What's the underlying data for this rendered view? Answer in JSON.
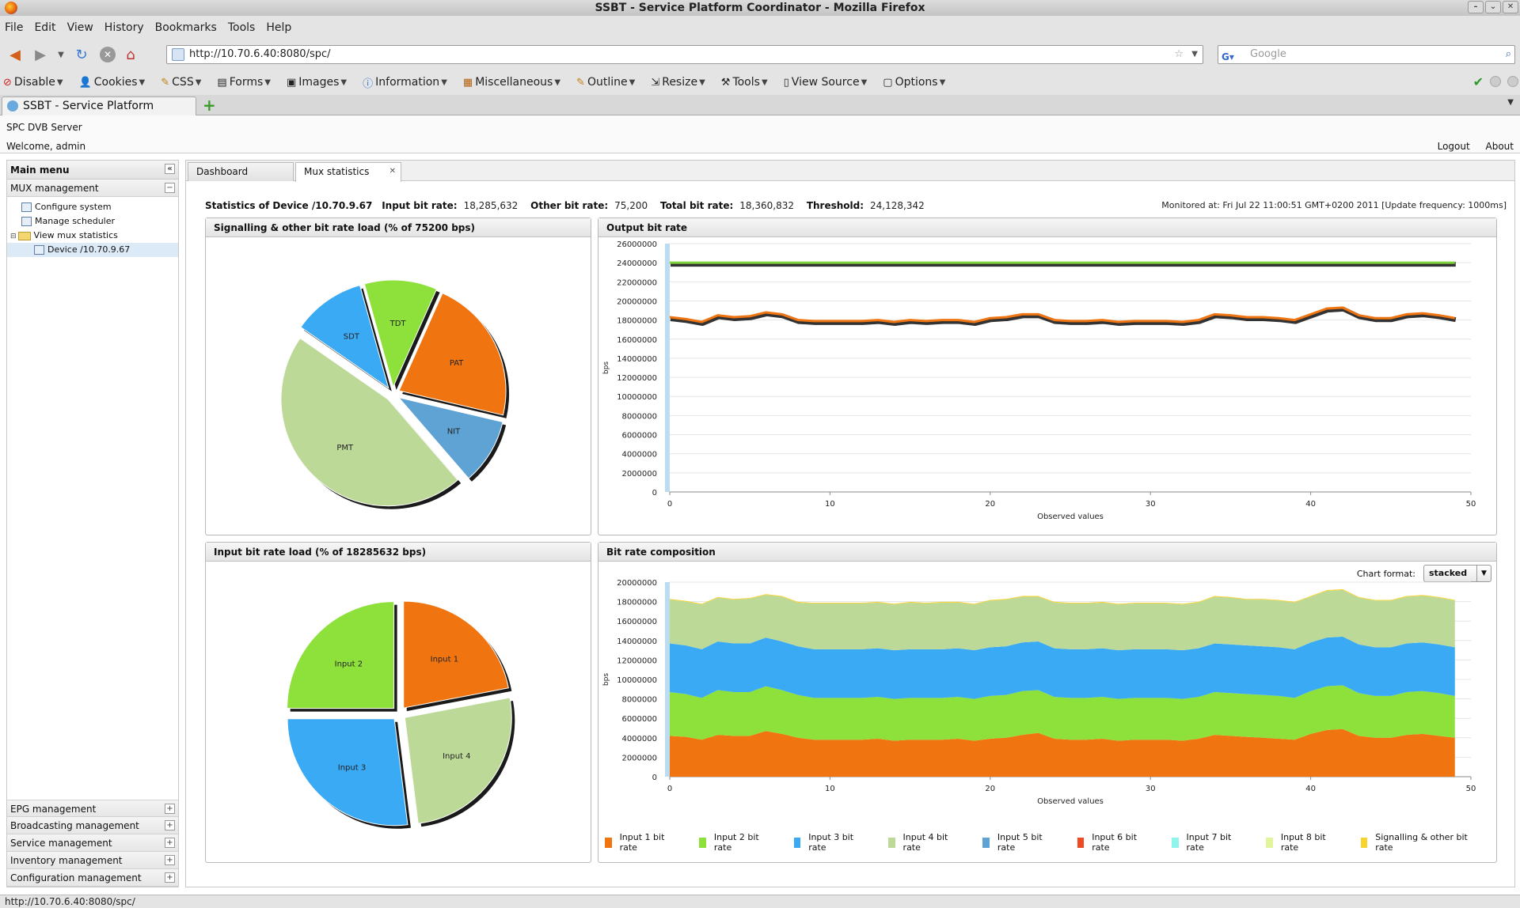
{
  "window": {
    "title": "SSBT - Service Platform Coordinator - Mozilla Firefox"
  },
  "menubar": [
    "File",
    "Edit",
    "View",
    "History",
    "Bookmarks",
    "Tools",
    "Help"
  ],
  "nav": {
    "url": "http://10.70.6.40:8080/spc/",
    "search_placeholder": "Google"
  },
  "devbar": [
    {
      "label": "Disable",
      "icon": "stop-icon"
    },
    {
      "label": "Cookies",
      "icon": "person-icon"
    },
    {
      "label": "CSS",
      "icon": "pencil-icon"
    },
    {
      "label": "Forms",
      "icon": "form-icon"
    },
    {
      "label": "Images",
      "icon": "image-icon"
    },
    {
      "label": "Information",
      "icon": "info-icon"
    },
    {
      "label": "Miscellaneous",
      "icon": "misc-icon"
    },
    {
      "label": "Outline",
      "icon": "pencil-icon"
    },
    {
      "label": "Resize",
      "icon": "resize-icon"
    },
    {
      "label": "Tools",
      "icon": "wrench-icon"
    },
    {
      "label": "View Source",
      "icon": "page-icon"
    },
    {
      "label": "Options",
      "icon": "options-icon"
    }
  ],
  "browser_tab": {
    "label": "SSBT - Service Platform Coordinator"
  },
  "app": {
    "name": "SPC DVB Server",
    "welcome": "Welcome, admin",
    "logout": "Logout",
    "about": "About"
  },
  "sidebar": {
    "title": "Main menu",
    "section": "MUX management",
    "items": [
      {
        "label": "Configure system"
      },
      {
        "label": "Manage scheduler"
      },
      {
        "label": "View mux statistics"
      },
      {
        "label": "Device /10.70.9.67"
      }
    ],
    "sections": [
      "EPG management",
      "Broadcasting management",
      "Service management",
      "Inventory management",
      "Configuration management"
    ]
  },
  "tabs": [
    {
      "label": "Dashboard"
    },
    {
      "label": "Mux statistics"
    }
  ],
  "stats": {
    "device": "Statistics of Device /10.70.9.67",
    "input_label": "Input bit rate:",
    "input": "18,285,632",
    "other_label": "Other bit rate:",
    "other": "75,200",
    "total_label": "Total bit rate:",
    "total": "18,360,832",
    "threshold_label": "Threshold:",
    "threshold": "24,128,342",
    "monitored": "Monitored at: Fri Jul 22 11:00:51 GMT+0200 2011 [Update frequency: 1000ms]"
  },
  "panels": {
    "signalling": "Signalling & other bit rate load (% of 75200 bps)",
    "output": "Output bit rate",
    "input": "Input bit rate load (% of 18285632 bps)",
    "composition": "Bit rate composition",
    "chart_format_label": "Chart format:",
    "chart_format": "stacked"
  },
  "colors": {
    "orange": "#f07410",
    "green": "#8ee03a",
    "blue": "#3aaaf5",
    "sage": "#bcd998",
    "steel": "#5ea3d4",
    "red": "#f04a22",
    "cyan": "#8ef4ec",
    "lime": "#e2f59a",
    "yellow": "#f8d32e",
    "dark": "#333333"
  },
  "chart_data": [
    {
      "type": "pie",
      "title": "Signalling & other bit rate load (% of 75200 bps)",
      "slices": [
        {
          "label": "PAT",
          "value": 22
        },
        {
          "label": "NIT",
          "value": 10
        },
        {
          "label": "PMT",
          "value": 46
        },
        {
          "label": "SDT",
          "value": 11
        },
        {
          "label": "TDT",
          "value": 11
        }
      ]
    },
    {
      "type": "line",
      "title": "Output bit rate",
      "xlabel": "Observed values",
      "ylabel": "bps",
      "xlim": [
        0,
        50
      ],
      "ylim": [
        0,
        26000000
      ],
      "xticks": [
        0,
        10,
        20,
        30,
        40,
        50
      ],
      "yticks": [
        0,
        2000000,
        4000000,
        6000000,
        8000000,
        10000000,
        12000000,
        14000000,
        16000000,
        18000000,
        20000000,
        22000000,
        24000000,
        26000000
      ],
      "x": [
        0,
        1,
        2,
        3,
        4,
        5,
        6,
        7,
        8,
        9,
        10,
        11,
        12,
        13,
        14,
        15,
        16,
        17,
        18,
        19,
        20,
        21,
        22,
        23,
        24,
        25,
        26,
        27,
        28,
        29,
        30,
        31,
        32,
        33,
        34,
        35,
        36,
        37,
        38,
        39,
        40,
        41,
        42,
        43,
        44,
        45,
        46,
        47,
        48,
        49
      ],
      "series": [
        {
          "values": [
            24000000,
            24000000,
            24000000,
            24000000,
            24000000,
            24000000,
            24000000,
            24000000,
            24000000,
            24000000,
            24000000,
            24000000,
            24000000,
            24000000,
            24000000,
            24000000,
            24000000,
            24000000,
            24000000,
            24000000,
            24000000,
            24000000,
            24000000,
            24000000,
            24000000,
            24000000,
            24000000,
            24000000,
            24000000,
            24000000,
            24000000,
            24000000,
            24000000,
            24000000,
            24000000,
            24000000,
            24000000,
            24000000,
            24000000,
            24000000,
            24000000,
            24000000,
            24000000,
            24000000,
            24000000,
            24000000,
            24000000,
            24000000,
            24000000,
            24000000
          ],
          "color": "#7fd23a"
        },
        {
          "values": [
            18300000,
            18100000,
            17800000,
            18500000,
            18300000,
            18400000,
            18800000,
            18600000,
            18000000,
            17900000,
            17900000,
            17900000,
            17900000,
            18000000,
            17800000,
            18000000,
            17900000,
            18000000,
            18000000,
            17800000,
            18200000,
            18300000,
            18600000,
            18600000,
            18000000,
            17900000,
            17900000,
            18000000,
            17800000,
            17900000,
            17900000,
            17900000,
            17800000,
            18000000,
            18600000,
            18500000,
            18300000,
            18300000,
            18200000,
            18000000,
            18600000,
            19200000,
            19300000,
            18500000,
            18200000,
            18200000,
            18600000,
            18700000,
            18500000,
            18200000
          ],
          "color": "#f07410"
        }
      ]
    },
    {
      "type": "pie",
      "title": "Input bit rate load (% of 18285632 bps)",
      "slices": [
        {
          "label": "Input 1",
          "value": 22
        },
        {
          "label": "Input 4",
          "value": 26
        },
        {
          "label": "Input 3",
          "value": 27
        },
        {
          "label": "Input 2",
          "value": 25
        }
      ]
    },
    {
      "type": "area",
      "title": "Bit rate composition",
      "stacked": true,
      "xlabel": "Observed values",
      "ylabel": "bps",
      "xlim": [
        0,
        50
      ],
      "ylim": [
        0,
        20000000
      ],
      "xticks": [
        0,
        10,
        20,
        30,
        40,
        50
      ],
      "yticks": [
        0,
        2000000,
        4000000,
        6000000,
        8000000,
        10000000,
        12000000,
        14000000,
        16000000,
        18000000,
        20000000
      ],
      "legend_position": "bottom",
      "series": [
        {
          "name": "Input 1 bit rate",
          "color": "#f07410",
          "values": [
            4200000,
            4100000,
            3800000,
            4300000,
            4200000,
            4200000,
            4700000,
            4400000,
            4000000,
            3800000,
            3800000,
            3800000,
            3800000,
            3900000,
            3700000,
            3800000,
            3800000,
            3800000,
            3900000,
            3700000,
            3900000,
            4000000,
            4300000,
            4500000,
            3900000,
            3800000,
            3800000,
            3900000,
            3700000,
            3800000,
            3800000,
            3800000,
            3700000,
            3900000,
            4300000,
            4200000,
            4100000,
            4000000,
            3900000,
            3800000,
            4400000,
            4800000,
            4900000,
            4200000,
            4000000,
            4000000,
            4300000,
            4400000,
            4200000,
            4000000
          ]
        },
        {
          "name": "Input 2 bit rate",
          "color": "#8ee03a",
          "values": [
            4500000,
            4400000,
            4300000,
            4600000,
            4500000,
            4500000,
            4600000,
            4500000,
            4400000,
            4300000,
            4300000,
            4300000,
            4300000,
            4300000,
            4300000,
            4300000,
            4300000,
            4300000,
            4300000,
            4300000,
            4400000,
            4400000,
            4500000,
            4400000,
            4300000,
            4300000,
            4300000,
            4300000,
            4300000,
            4300000,
            4300000,
            4300000,
            4300000,
            4300000,
            4400000,
            4400000,
            4400000,
            4400000,
            4400000,
            4300000,
            4400000,
            4500000,
            4500000,
            4400000,
            4300000,
            4300000,
            4400000,
            4400000,
            4400000,
            4300000
          ]
        },
        {
          "name": "Input 3 bit rate",
          "color": "#3aaaf5",
          "values": [
            5000000,
            5000000,
            5000000,
            5000000,
            5000000,
            5000000,
            5000000,
            5000000,
            5000000,
            5000000,
            5000000,
            5000000,
            5000000,
            5000000,
            5000000,
            5000000,
            5000000,
            5000000,
            5000000,
            5000000,
            5000000,
            5000000,
            5000000,
            5000000,
            5000000,
            5000000,
            5000000,
            5000000,
            5000000,
            5000000,
            5000000,
            5000000,
            5000000,
            5000000,
            5000000,
            5000000,
            5000000,
            5000000,
            5000000,
            5000000,
            5000000,
            5000000,
            5000000,
            5000000,
            5000000,
            5000000,
            5000000,
            5000000,
            5000000,
            5000000
          ]
        },
        {
          "name": "Input 4 bit rate",
          "color": "#bcd998",
          "values": [
            4500000,
            4500000,
            4600000,
            4500000,
            4500000,
            4600000,
            4400000,
            4600000,
            4500000,
            4700000,
            4700000,
            4700000,
            4700000,
            4700000,
            4700000,
            4800000,
            4700000,
            4800000,
            4700000,
            4700000,
            4800000,
            4800000,
            4700000,
            4600000,
            4700000,
            4700000,
            4700000,
            4700000,
            4700000,
            4700000,
            4700000,
            4700000,
            4700000,
            4700000,
            4800000,
            4800000,
            4700000,
            4800000,
            4800000,
            4800000,
            4700000,
            4800000,
            4800000,
            4800000,
            4800000,
            4800000,
            4800000,
            4800000,
            4800000,
            4800000
          ]
        },
        {
          "name": "Input 5 bit rate",
          "color": "#5ea3d4",
          "values": [
            0,
            0,
            0,
            0,
            0,
            0,
            0,
            0,
            0,
            0,
            0,
            0,
            0,
            0,
            0,
            0,
            0,
            0,
            0,
            0,
            0,
            0,
            0,
            0,
            0,
            0,
            0,
            0,
            0,
            0,
            0,
            0,
            0,
            0,
            0,
            0,
            0,
            0,
            0,
            0,
            0,
            0,
            0,
            0,
            0,
            0,
            0,
            0,
            0,
            0
          ]
        },
        {
          "name": "Input 6 bit rate",
          "color": "#f04a22",
          "values": [
            0,
            0,
            0,
            0,
            0,
            0,
            0,
            0,
            0,
            0,
            0,
            0,
            0,
            0,
            0,
            0,
            0,
            0,
            0,
            0,
            0,
            0,
            0,
            0,
            0,
            0,
            0,
            0,
            0,
            0,
            0,
            0,
            0,
            0,
            0,
            0,
            0,
            0,
            0,
            0,
            0,
            0,
            0,
            0,
            0,
            0,
            0,
            0,
            0,
            0
          ]
        },
        {
          "name": "Input 7 bit rate",
          "color": "#8ef4ec",
          "values": [
            0,
            0,
            0,
            0,
            0,
            0,
            0,
            0,
            0,
            0,
            0,
            0,
            0,
            0,
            0,
            0,
            0,
            0,
            0,
            0,
            0,
            0,
            0,
            0,
            0,
            0,
            0,
            0,
            0,
            0,
            0,
            0,
            0,
            0,
            0,
            0,
            0,
            0,
            0,
            0,
            0,
            0,
            0,
            0,
            0,
            0,
            0,
            0,
            0,
            0
          ]
        },
        {
          "name": "Input 8 bit rate",
          "color": "#e2f59a",
          "values": [
            0,
            0,
            0,
            0,
            0,
            0,
            0,
            0,
            0,
            0,
            0,
            0,
            0,
            0,
            0,
            0,
            0,
            0,
            0,
            0,
            0,
            0,
            0,
            0,
            0,
            0,
            0,
            0,
            0,
            0,
            0,
            0,
            0,
            0,
            0,
            0,
            0,
            0,
            0,
            0,
            0,
            0,
            0,
            0,
            0,
            0,
            0,
            0,
            0,
            0
          ]
        },
        {
          "name": "Signalling & other bit rate",
          "color": "#f8d32e",
          "values": [
            75200,
            75200,
            75200,
            75200,
            75200,
            75200,
            75200,
            75200,
            75200,
            75200,
            75200,
            75200,
            75200,
            75200,
            75200,
            75200,
            75200,
            75200,
            75200,
            75200,
            75200,
            75200,
            75200,
            75200,
            75200,
            75200,
            75200,
            75200,
            75200,
            75200,
            75200,
            75200,
            75200,
            75200,
            75200,
            75200,
            75200,
            75200,
            75200,
            75200,
            75200,
            75200,
            75200,
            75200,
            75200,
            75200,
            75200,
            75200,
            75200,
            75200
          ]
        }
      ]
    }
  ],
  "status": {
    "text": "http://10.70.6.40:8080/spc/"
  }
}
